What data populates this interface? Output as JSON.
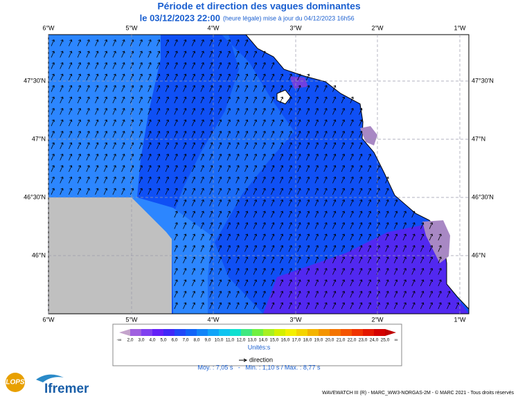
{
  "header": {
    "title": "Période et direction des vagues dominantes",
    "date": "le 03/12/2023 22:00",
    "subtitle": "(heure légale) mise à jour du 04/12/2023 16h56"
  },
  "map": {
    "lon_labels": [
      "6°W",
      "5°W",
      "4°W",
      "3°W",
      "2°W",
      "1°W"
    ],
    "lat_labels": [
      "47°30'N",
      "47°N",
      "46°30'N",
      "46°N"
    ]
  },
  "legend": {
    "colors": [
      "#c4a4cc",
      "#a060e0",
      "#8040f0",
      "#6420f8",
      "#4028f8",
      "#2048f8",
      "#1064f8",
      "#1084f8",
      "#10a4f8",
      "#10c4f0",
      "#10e0d0",
      "#40e880",
      "#70f040",
      "#a8f020",
      "#d4f000",
      "#f4f000",
      "#f4d400",
      "#f4b400",
      "#f49400",
      "#f47400",
      "#f45400",
      "#f03400",
      "#e41800",
      "#d40000",
      "#c00000"
    ],
    "labels": [
      "-∞",
      "2,0",
      "3,0",
      "4,0",
      "5,0",
      "6,0",
      "7,0",
      "8,0",
      "9,0",
      "10,0",
      "11,0",
      "12,0",
      "13,0",
      "14,0",
      "15,0",
      "16,0",
      "17,0",
      "18,0",
      "19,0",
      "20,0",
      "21,0",
      "22,0",
      "23,0",
      "24,0",
      "25,0",
      "∞"
    ],
    "units": "Unités:s",
    "direction": "direction"
  },
  "stats": "Moy. : 7,05 s   -   Min. : 1,10 s / Max. : 8,77 s",
  "footer": "WAVEWATCH III (R) - MARC_WW3-NORGAS-2M - © MARC 2021 - Tous droits réservés",
  "logos": {
    "lops": "LOPS",
    "ifremer": "Ifremer"
  }
}
